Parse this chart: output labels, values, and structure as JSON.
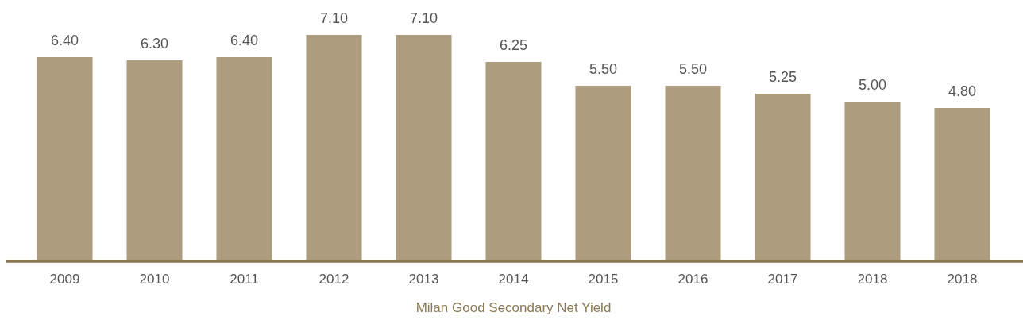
{
  "chart_data": {
    "type": "bar",
    "title": "Milan Good Secondary Net Yield",
    "categories": [
      "2009",
      "2010",
      "2011",
      "2012",
      "2013",
      "2014",
      "2015",
      "2016",
      "2017",
      "2018",
      "2018"
    ],
    "values": [
      6.4,
      6.3,
      6.4,
      7.1,
      7.1,
      6.25,
      5.5,
      5.5,
      5.25,
      5.0,
      4.8
    ],
    "value_labels": [
      "6.40",
      "6.30",
      "6.40",
      "7.10",
      "7.10",
      "6.25",
      "5.50",
      "5.50",
      "5.25",
      "5.00",
      "4.80"
    ],
    "color": "#ad9c7e",
    "tick_labels": "x",
    "grid": false,
    "legend": false
  }
}
